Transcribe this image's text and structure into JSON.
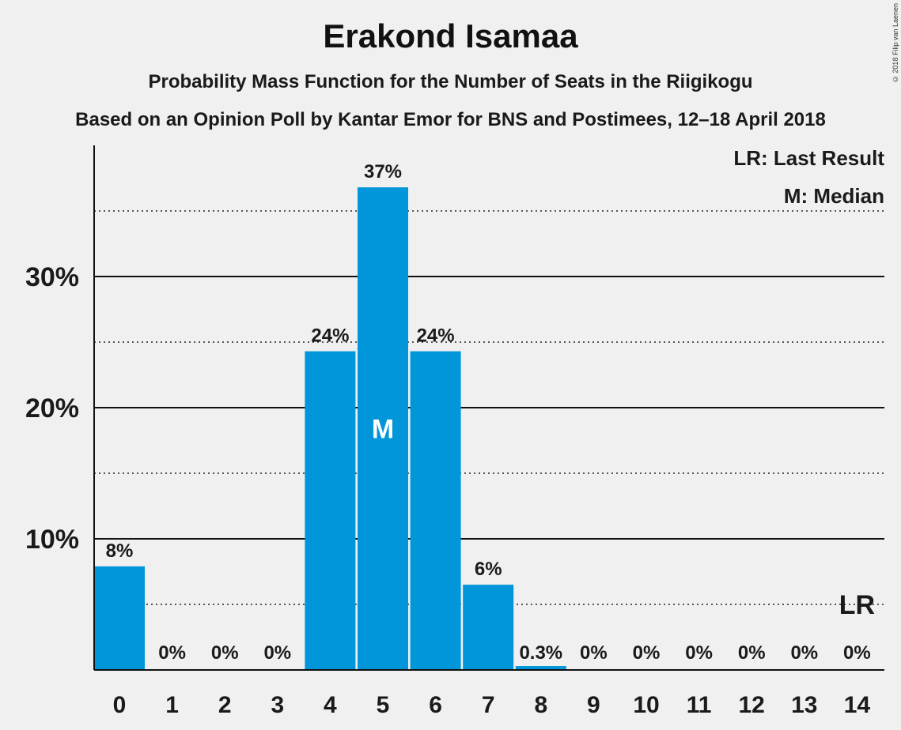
{
  "title": "Erakond Isamaa",
  "subtitle1": "Probability Mass Function for the Number of Seats in the Riigikogu",
  "subtitle2": "Based on an Opinion Poll by Kantar Emor for BNS and Postimees, 12–18 April 2018",
  "copyright": "© 2018 Filip van Laenen",
  "legend": {
    "last_result": "LR: Last Result",
    "median": "M: Median"
  },
  "colors": {
    "bar": "#0096d9",
    "background": "#f0f0f0",
    "text": "#1a1a1a"
  },
  "chart_data": {
    "type": "bar",
    "categories": [
      "0",
      "1",
      "2",
      "3",
      "4",
      "5",
      "6",
      "7",
      "8",
      "9",
      "10",
      "11",
      "12",
      "13",
      "14"
    ],
    "values": [
      7.9,
      0,
      0,
      0,
      24.3,
      36.8,
      24.3,
      6.5,
      0.3,
      0,
      0,
      0,
      0,
      0,
      0
    ],
    "labels": [
      "8%",
      "0%",
      "0%",
      "0%",
      "24%",
      "37%",
      "24%",
      "6%",
      "0.3%",
      "0%",
      "0%",
      "0%",
      "0%",
      "0%",
      "0%"
    ],
    "ylim": [
      0,
      40
    ],
    "yticks": [
      10,
      20,
      30
    ],
    "ytick_labels": [
      "10%",
      "20%",
      "30%"
    ],
    "minor_gridlines": [
      5,
      15,
      25,
      35
    ],
    "median_index": 5,
    "median_marker": "M",
    "last_result_index": 14,
    "last_result_marker": "LR",
    "legend_position": "top-right"
  }
}
